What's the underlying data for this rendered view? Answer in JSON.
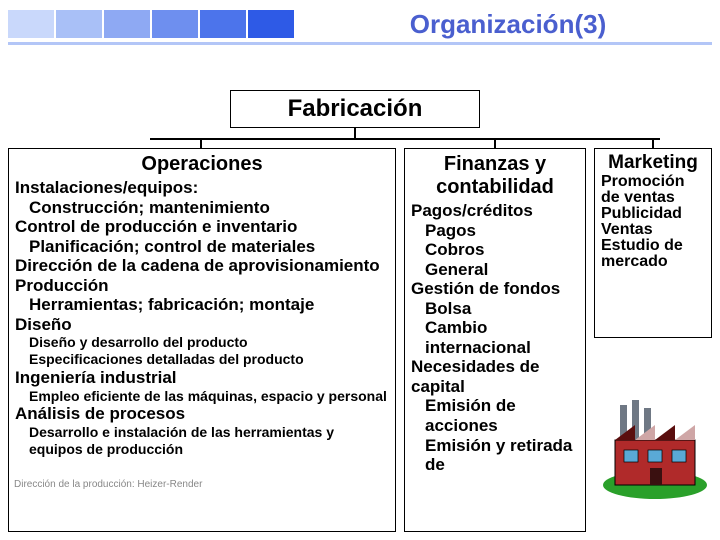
{
  "header": {
    "title": "Organización(3)",
    "bar_colors": [
      "#c9d8fb",
      "#a9c0f7",
      "#8ea9f3",
      "#6e8fef",
      "#4c74eb",
      "#2e5ae6"
    ],
    "underline_color": "#b3c6f7",
    "title_color": "#4a5fcf"
  },
  "root_box": {
    "label": "Fabricación"
  },
  "columns": {
    "operations": {
      "title": "Operaciones",
      "lines": [
        {
          "text": "Instalaciones/equipos:",
          "cls": "h1"
        },
        {
          "text": "Construcción; mantenimiento",
          "cls": "h2"
        },
        {
          "text": "Control de producción e inventario",
          "cls": "h1"
        },
        {
          "text": "Planificación; control de materiales",
          "cls": "h2"
        },
        {
          "text": "Dirección de la cadena de aprovisionamiento",
          "cls": "h1"
        },
        {
          "text": "Producción",
          "cls": "h1"
        },
        {
          "text": "Herramientas; fabricación; montaje",
          "cls": "h2"
        },
        {
          "text": "Diseño",
          "cls": "h1"
        },
        {
          "text": "Diseño y desarrollo del producto",
          "cls": "sm"
        },
        {
          "text": "Especificaciones detalladas del producto",
          "cls": "sm"
        },
        {
          "text": "Ingeniería industrial",
          "cls": "h1"
        },
        {
          "text": "Empleo eficiente de las máquinas, espacio y     personal",
          "cls": "sm"
        },
        {
          "text": "Análisis de procesos",
          "cls": "h1"
        },
        {
          "text": "Desarrollo e instalación de las herramientas y equipos de producción",
          "cls": "sm"
        }
      ]
    },
    "finance": {
      "title": "Finanzas y contabilidad",
      "lines": [
        {
          "text": "Pagos/créditos",
          "cls": "h1"
        },
        {
          "text": "Pagos",
          "cls": "h2"
        },
        {
          "text": "Cobros",
          "cls": "h2"
        },
        {
          "text": "General",
          "cls": "h2"
        },
        {
          "text": "Gestión de fondos",
          "cls": "h1"
        },
        {
          "text": "Bolsa",
          "cls": "h2"
        },
        {
          "text": "Cambio internacional",
          "cls": "h2"
        },
        {
          "text": "Necesidades de capital",
          "cls": "h1"
        },
        {
          "text": "Emisión de acciones",
          "cls": "h2"
        },
        {
          "text": "Emisión y retirada de",
          "cls": "h2"
        }
      ]
    },
    "marketing": {
      "title": "Marketing",
      "lines": [
        {
          "text": "Promoción de ventas",
          "cls": "h1"
        },
        {
          "text": "Publicidad",
          "cls": "h1"
        },
        {
          "text": "Ventas",
          "cls": "h1"
        },
        {
          "text": "Estudio de mercado",
          "cls": "h1"
        }
      ]
    }
  },
  "footer": "Dirección de la producción: Heizer-Render",
  "factory": {
    "ground": "#2aa02a",
    "walls": "#b02a2a",
    "roof_dark": "#5a0e0e",
    "roof_light": "#cfa6a6",
    "stack": "#6f7884",
    "window": "#5aa9d6"
  }
}
